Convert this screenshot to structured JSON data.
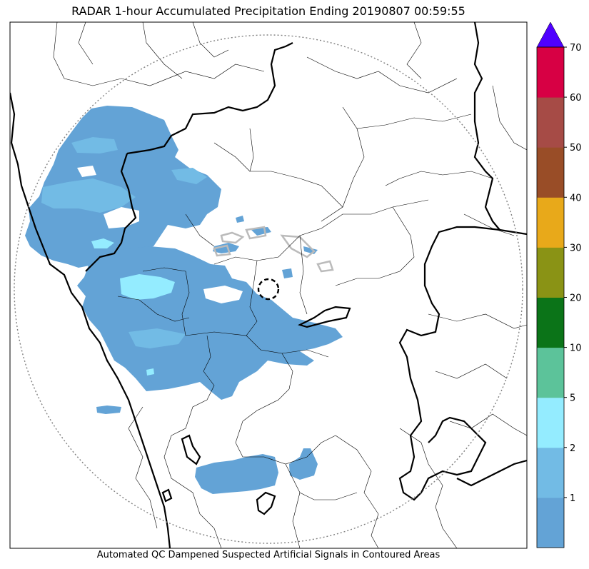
{
  "title": "RADAR 1-hour Accumulated Precipitation Ending 20190807 00:59:55",
  "footer_note": "Automated QC Dampened Suspected Artificial Signals in Contoured Areas",
  "colorbar": {
    "levels": [
      {
        "value": 0,
        "label": "",
        "color": "#63a3d6"
      },
      {
        "value": 1,
        "label": "1",
        "color": "#72bbe5"
      },
      {
        "value": 2,
        "label": "2",
        "color": "#94ecff"
      },
      {
        "value": 5,
        "label": "5",
        "color": "#5cc39a"
      },
      {
        "value": 10,
        "label": "10",
        "color": "#0b7418"
      },
      {
        "value": 20,
        "label": "20",
        "color": "#8a9315"
      },
      {
        "value": 30,
        "label": "30",
        "color": "#e8a91a"
      },
      {
        "value": 40,
        "label": "40",
        "color": "#994d27"
      },
      {
        "value": 50,
        "label": "50",
        "color": "#a64b46"
      },
      {
        "value": 60,
        "label": "60",
        "color": "#d70044"
      }
    ],
    "top_label": "70",
    "extend_color": "#4f00ff"
  },
  "colors": {
    "precip_light": "#63a3d6",
    "precip_mid": "#72bbe5",
    "precip_high": "#94ecff",
    "border": "#000000",
    "range_ring": "#808080",
    "qc_contour": "#bbbbbb"
  }
}
